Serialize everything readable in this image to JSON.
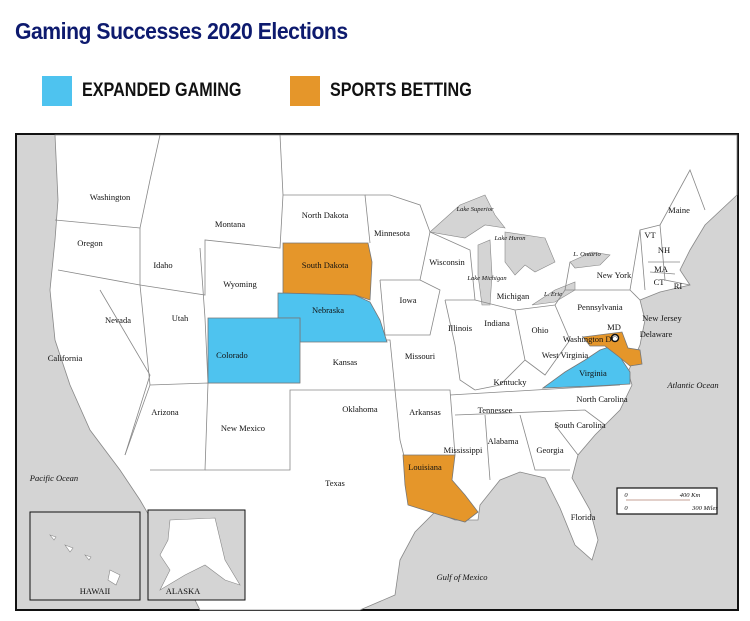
{
  "title": "Gaming Successes 2020 Elections",
  "legend": [
    {
      "label": "EXPANDED GAMING",
      "color": "#4ec3ef"
    },
    {
      "label": "SPORTS BETTING",
      "color": "#e5962a"
    }
  ],
  "map": {
    "highlighted": {
      "expanded_gaming": [
        "Colorado",
        "Nebraska",
        "Virginia"
      ],
      "sports_betting": [
        "South Dakota",
        "Louisiana",
        "Maryland"
      ]
    },
    "labels": [
      "Washington",
      "Oregon",
      "Idaho",
      "Montana",
      "Wyoming",
      "Nevada",
      "Utah",
      "California",
      "Arizona",
      "New Mexico",
      "Colorado",
      "North Dakota",
      "South Dakota",
      "Nebraska",
      "Kansas",
      "Oklahoma",
      "Texas",
      "Minnesota",
      "Iowa",
      "Missouri",
      "Arkansas",
      "Louisiana",
      "Wisconsin",
      "Illinois",
      "Michigan",
      "Indiana",
      "Ohio",
      "Kentucky",
      "Tennessee",
      "Mississippi",
      "Alabama",
      "Georgia",
      "Florida",
      "South Carolina",
      "North Carolina",
      "Virginia",
      "West Virginia",
      "Pennsylvania",
      "New York",
      "Maine",
      "VT",
      "NH",
      "MA",
      "CT",
      "RI",
      "New Jersey",
      "Delaware",
      "MD",
      "Washington DC"
    ],
    "waters": [
      "Atlantic Ocean",
      "Pacific Ocean",
      "Gulf of Mexico"
    ],
    "lakes": [
      "Lake Superior",
      "Lake Huron",
      "Lake Michigan",
      "L. Ontario",
      "L. Erie"
    ],
    "insets": [
      "HAWAII",
      "ALASKA"
    ],
    "scale": {
      "km": "400 Km",
      "miles": "300 Miles",
      "zero": "0"
    }
  }
}
